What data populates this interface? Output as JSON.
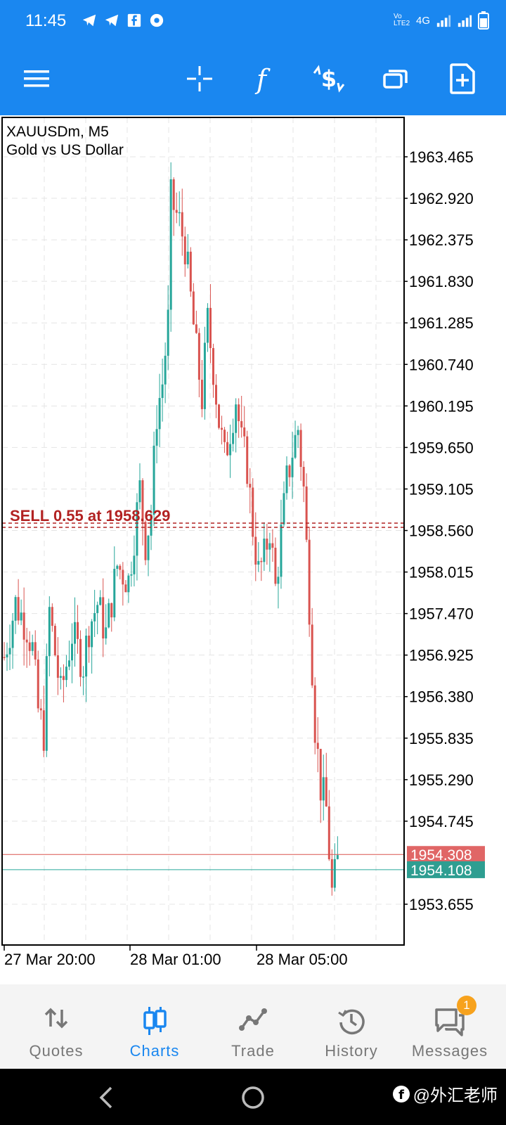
{
  "status_bar": {
    "time": "11:45",
    "network": "4G",
    "volte": "Vo LTE2"
  },
  "toolbar": {
    "icons": [
      "menu-icon",
      "crosshair-icon",
      "indicators-icon",
      "one-click-trade-icon",
      "windows-icon",
      "new-order-icon"
    ]
  },
  "chart": {
    "symbol": "XAUUSDm, M5",
    "description": "Gold vs US Dollar",
    "position_label": "SELL 0.55 at 1958.629",
    "bid": "1954.308",
    "ask": "1954.108",
    "colors": {
      "bull": "#26a69a",
      "bear": "#d9534f",
      "position_line": "#b22222"
    }
  },
  "chart_data": {
    "type": "candlestick",
    "title": "XAUUSDm, M5",
    "subtitle": "Gold vs US Dollar",
    "price_ticks": [
      "1963.465",
      "1962.920",
      "1962.375",
      "1961.830",
      "1961.285",
      "1960.740",
      "1960.195",
      "1959.650",
      "1959.105",
      "1958.560",
      "1958.015",
      "1957.470",
      "1956.925",
      "1956.380",
      "1955.835",
      "1955.290",
      "1954.745",
      "1953.655"
    ],
    "time_labels": [
      "27 Mar 20:00",
      "28 Mar 01:00",
      "28 Mar 05:00"
    ],
    "ylim": [
      1953.1,
      1964.1
    ],
    "position_price": 1958.629,
    "bid_price": 1954.308,
    "ask_price": 1954.108,
    "close_path": [
      [
        0,
        1956.9
      ],
      [
        4,
        1957.6
      ],
      [
        8,
        1957.3
      ],
      [
        10,
        1957.0
      ],
      [
        12,
        1956.2
      ],
      [
        14,
        1955.9
      ],
      [
        16,
        1957.5
      ],
      [
        20,
        1956.4
      ],
      [
        24,
        1957.2
      ],
      [
        28,
        1956.8
      ],
      [
        30,
        1957.3
      ],
      [
        33,
        1957.6
      ],
      [
        36,
        1957.2
      ],
      [
        40,
        1958.1
      ],
      [
        44,
        1957.9
      ],
      [
        48,
        1959.1
      ],
      [
        50,
        1958.4
      ],
      [
        52,
        1958.8
      ],
      [
        54,
        1960.1
      ],
      [
        56,
        1960.5
      ],
      [
        58,
        1961.3
      ],
      [
        59,
        1962.9
      ],
      [
        62,
        1962.6
      ],
      [
        64,
        1962.3
      ],
      [
        66,
        1961.6
      ],
      [
        68,
        1960.9
      ],
      [
        70,
        1960.3
      ],
      [
        72,
        1961.3
      ],
      [
        74,
        1960.7
      ],
      [
        76,
        1960.0
      ],
      [
        78,
        1959.5
      ],
      [
        80,
        1959.9
      ],
      [
        82,
        1960.3
      ],
      [
        84,
        1959.7
      ],
      [
        86,
        1959.4
      ],
      [
        88,
        1958.6
      ],
      [
        90,
        1958.0
      ],
      [
        92,
        1958.2
      ],
      [
        94,
        1958.6
      ],
      [
        96,
        1957.8
      ],
      [
        98,
        1958.5
      ],
      [
        100,
        1959.2
      ],
      [
        102,
        1959.6
      ],
      [
        104,
        1959.9
      ],
      [
        106,
        1959.1
      ],
      [
        108,
        1957.6
      ],
      [
        110,
        1956.0
      ],
      [
        112,
        1955.2
      ],
      [
        114,
        1954.9
      ],
      [
        116,
        1953.8
      ],
      [
        118,
        1954.2
      ]
    ]
  },
  "nav": {
    "items": [
      {
        "label": "Quotes",
        "icon": "quotes-icon",
        "active": false
      },
      {
        "label": "Charts",
        "icon": "charts-icon",
        "active": true
      },
      {
        "label": "Trade",
        "icon": "trade-icon",
        "active": false
      },
      {
        "label": "History",
        "icon": "history-icon",
        "active": false
      },
      {
        "label": "Messages",
        "icon": "messages-icon",
        "active": false,
        "badge": "1"
      }
    ]
  },
  "watermark": "@外汇老师"
}
